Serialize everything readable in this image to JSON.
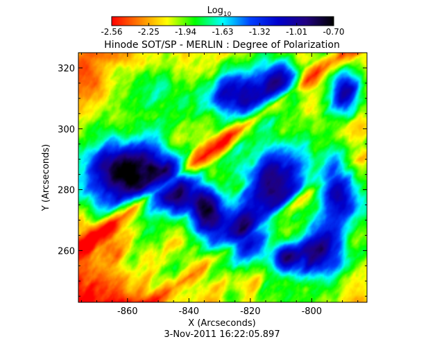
{
  "chart_data": {
    "type": "heatmap",
    "title": "Hinode SOT/SP - MERLIN : Degree of Polarization",
    "xlabel": "X (Arcseconds)",
    "ylabel": "Y (Arcseconds)",
    "timestamp": "3-Nov-2011 16:22:05.897",
    "xlim": [
      -876,
      -782
    ],
    "ylim": [
      243,
      325
    ],
    "x_ticks": [
      -860,
      -840,
      -820,
      -800
    ],
    "x_tick_labels": [
      "-860",
      "-840",
      "-820",
      "-800"
    ],
    "y_ticks": [
      260,
      280,
      300,
      320
    ],
    "y_tick_labels": [
      "260",
      "280",
      "300",
      "320"
    ],
    "colorbar": {
      "title": "Log",
      "title_subscript": "10",
      "min": -2.56,
      "max": -0.7,
      "ticks": [
        -2.56,
        -2.25,
        -1.94,
        -1.63,
        -1.32,
        -1.01,
        -0.7
      ],
      "tick_labels": [
        "-2.56",
        "-2.25",
        "-1.94",
        "-1.63",
        "-1.32",
        "-1.01",
        "-0.70"
      ],
      "colormap": "rainbow (red low to black high)"
    },
    "colormap_stops": [
      "#ff0000",
      "#ff8000",
      "#ffff00",
      "#00ff00",
      "#00ffff",
      "#0040ff",
      "#0000cc",
      "#200080",
      "#000000"
    ]
  }
}
